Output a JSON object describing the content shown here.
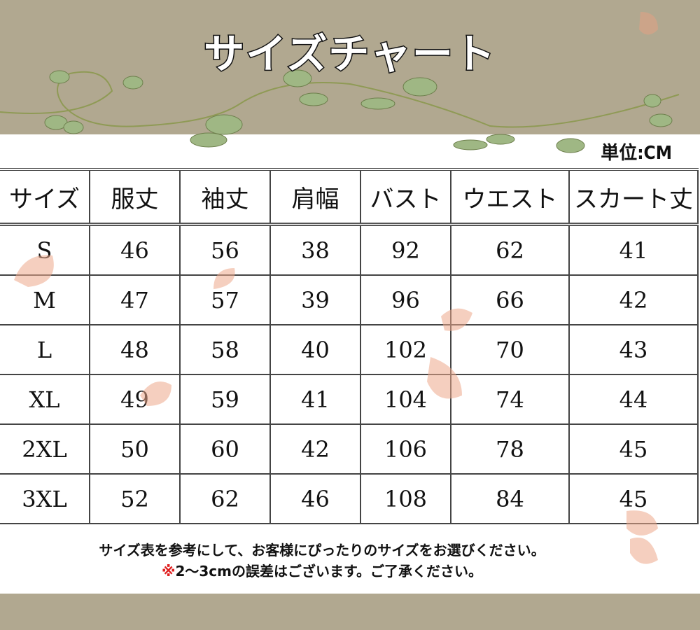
{
  "title": "サイズチャート",
  "unit_label": "単位:CM",
  "table": {
    "headers": [
      "サイズ",
      "服丈",
      "袖丈",
      "肩幅",
      "バスト",
      "ウエスト",
      "スカート丈"
    ],
    "rows": [
      [
        "S",
        "46",
        "56",
        "38",
        "92",
        "62",
        "41"
      ],
      [
        "M",
        "47",
        "57",
        "39",
        "96",
        "66",
        "42"
      ],
      [
        "L",
        "48",
        "58",
        "40",
        "102",
        "70",
        "43"
      ],
      [
        "XL",
        "49",
        "59",
        "41",
        "104",
        "74",
        "44"
      ],
      [
        "2XL",
        "50",
        "60",
        "42",
        "106",
        "78",
        "45"
      ],
      [
        "3XL",
        "52",
        "62",
        "46",
        "108",
        "84",
        "45"
      ]
    ]
  },
  "notes": {
    "line1": "サイズ表を参考にして、お客様にぴったりのサイズをお選びください。",
    "line2_mark": "※",
    "line2": "2～3cmの誤差はございます。ご了承ください。"
  },
  "colors": {
    "band": "#b1a890",
    "note_mark": "#e02020"
  }
}
